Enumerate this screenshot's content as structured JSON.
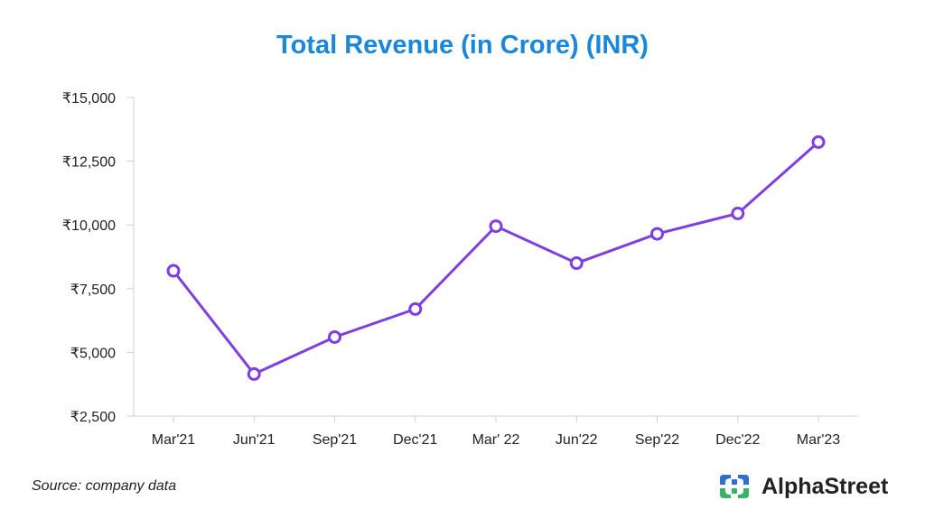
{
  "page": {
    "title": "Total Revenue (in Crore) (INR)",
    "source": "Source: company data",
    "brand_name": "AlphaStreet"
  },
  "colors": {
    "title": "#1a87d8",
    "line": "#7f3fe0",
    "axis": "#d0d0d0",
    "text": "#222222",
    "logo_blue": "#2c6fd1",
    "logo_green": "#35b36b"
  },
  "chart_data": {
    "type": "line",
    "title": "Total Revenue (in Crore) (INR)",
    "xlabel": "",
    "ylabel": "",
    "categories": [
      "Mar'21",
      "Jun'21",
      "Sep'21",
      "Dec'21",
      "Mar' 22",
      "Jun'22",
      "Sep'22",
      "Dec'22",
      "Mar'23"
    ],
    "series": [
      {
        "name": "Total Revenue",
        "values": [
          8200,
          4150,
          5600,
          6700,
          9950,
          8500,
          9650,
          10450,
          13250
        ]
      }
    ],
    "ylim": [
      2500,
      15000
    ],
    "yticks": [
      2500,
      5000,
      7500,
      10000,
      12500,
      15000
    ],
    "ytick_labels": [
      "₹2,500",
      "₹5,000",
      "₹7,500",
      "₹10,000",
      "₹12,500",
      "₹15,000"
    ],
    "grid": false,
    "markers": "hollow-circle"
  }
}
